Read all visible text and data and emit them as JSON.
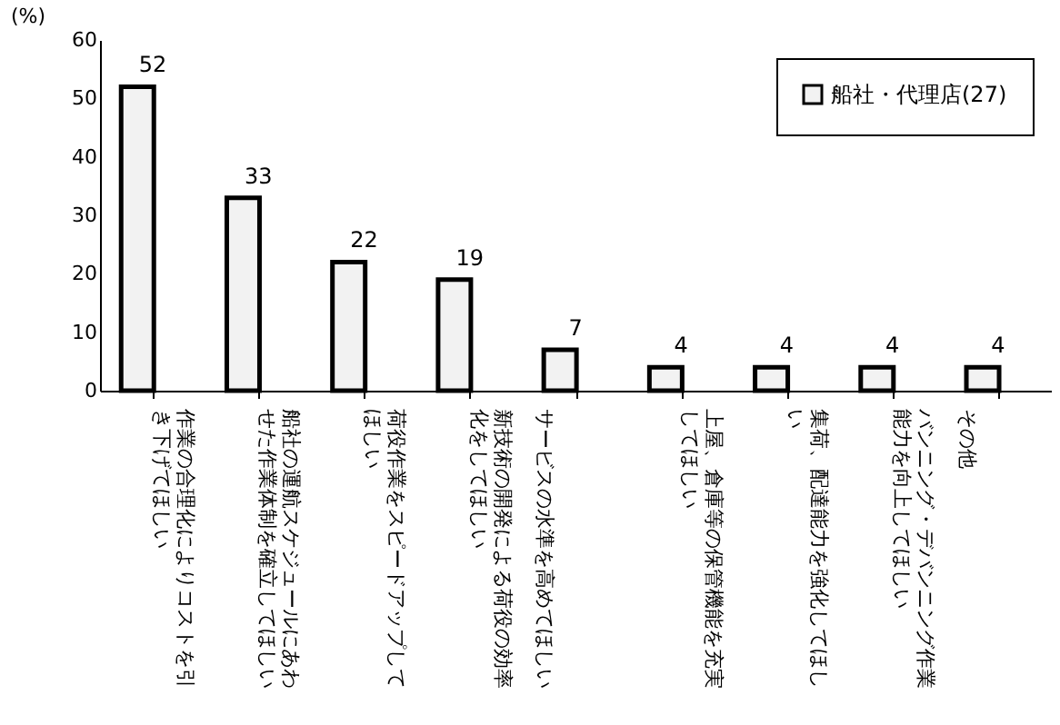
{
  "chart_data": {
    "type": "bar",
    "categories": [
      "作業の合理化によりコストを引き下げてほしい",
      "船社の運航スケジュールにあわせた作業体制を確立してほしい",
      "荷役作業をスピードアップしてほしい",
      "新技術の開発による荷役の効率化をしてほしい",
      "サービスの水準を高めてほしい",
      "上屋、倉庫等の保管機能を充実してほしい",
      "集荷、配達能力を強化してほしい",
      "バンニング・デバンニング作業能力を向上してほしい",
      "その他"
    ],
    "series": [
      {
        "name": "船社・代理店(27)",
        "color": "#f2f2f2",
        "values": [
          52,
          33,
          22,
          19,
          7,
          4,
          4,
          4,
          4
        ]
      }
    ],
    "ylabel": "(%)",
    "ylim": [
      0,
      60
    ],
    "yticks": [
      0,
      10,
      20,
      30,
      40,
      50,
      60
    ],
    "data_labels": true,
    "legend": "top right",
    "grid": false
  }
}
